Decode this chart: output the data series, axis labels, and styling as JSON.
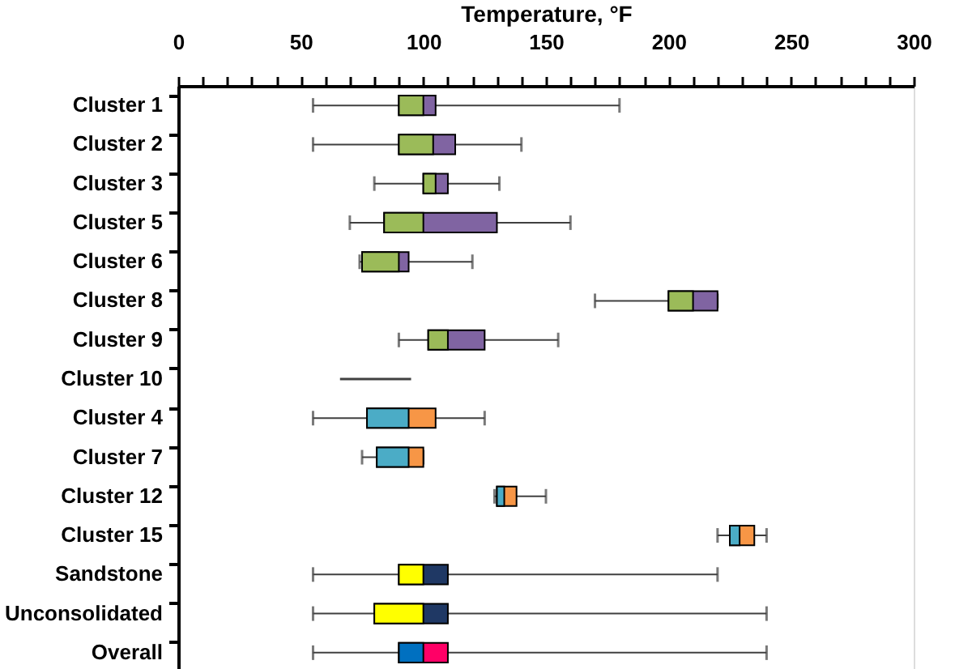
{
  "chart_data": {
    "type": "box",
    "orientation": "horizontal",
    "xlabel": "Temperature, °F",
    "categories": [
      "Cluster 1",
      "Cluster 2",
      "Cluster 3",
      "Cluster 5",
      "Cluster 6",
      "Cluster 8",
      "Cluster 9",
      "Cluster 10",
      "Cluster 4",
      "Cluster 7",
      "Cluster 12",
      "Cluster 15",
      "Sandstone",
      "Unconsolidated",
      "Overall"
    ],
    "xlim": [
      0,
      300
    ],
    "xticks": [
      0,
      {
        "value": 10,
        "label": null
      },
      {
        "value": 20,
        "label": null
      },
      {
        "value": 30,
        "label": null
      },
      {
        "value": 40,
        "label": null
      },
      50,
      {
        "value": 60,
        "label": null
      },
      {
        "value": 70,
        "label": null
      },
      {
        "value": 80,
        "label": null
      },
      {
        "value": 90,
        "label": null
      },
      100,
      {
        "value": 110,
        "label": null
      },
      {
        "value": 120,
        "label": null
      },
      {
        "value": 130,
        "label": null
      },
      {
        "value": 140,
        "label": null
      },
      150,
      {
        "value": 160,
        "label": null
      },
      {
        "value": 170,
        "label": null
      },
      {
        "value": 180,
        "label": null
      },
      {
        "value": 190,
        "label": null
      },
      200,
      {
        "value": 210,
        "label": null
      },
      {
        "value": 220,
        "label": null
      },
      {
        "value": 230,
        "label": null
      },
      {
        "value": 240,
        "label": null
      },
      250,
      {
        "value": 260,
        "label": null
      },
      {
        "value": 270,
        "label": null
      },
      {
        "value": 280,
        "label": null
      },
      {
        "value": 290,
        "label": null
      },
      300
    ],
    "grid": false,
    "series": [
      {
        "color": "#9bbb59",
        "colors": [
          "#8064a2",
          "#8064a2",
          "#8064a2",
          "#8064a2",
          "#8064a2",
          "#8064a2",
          "#8064a2",
          "#8064a2",
          null,
          null,
          null,
          null,
          null,
          null,
          null
        ],
        "boxes": [
          {
            "low": 55,
            "q1": 90,
            "median": 100,
            "q3": 105,
            "high": 180
          },
          {
            "low": 55,
            "q1": 90,
            "median": 104,
            "q3": 113,
            "high": 140
          },
          {
            "low": 80,
            "q1": 100,
            "median": 105,
            "q3": 110,
            "high": 131
          },
          {
            "low": 70,
            "q1": 84,
            "median": 100,
            "q3": 130,
            "high": 160
          },
          {
            "low": 74,
            "q1": 75,
            "median": 90,
            "q3": 94,
            "high": 120
          },
          {
            "low": 170,
            "q1": 200,
            "median": 210,
            "q3": 220,
            "high": 220
          },
          {
            "low": 90,
            "q1": 102,
            "median": 110,
            "q3": 125,
            "high": 155
          },
          null,
          null,
          null,
          null,
          null,
          null,
          null,
          null
        ]
      },
      {
        "type": "bar",
        "color": "#404040",
        "base": [
          null,
          null,
          null,
          null,
          null,
          null,
          null,
          66,
          null,
          null,
          null,
          null,
          null,
          null,
          null
        ],
        "values": [
          null,
          null,
          null,
          null,
          null,
          null,
          null,
          29,
          null,
          null,
          null,
          null,
          null,
          null,
          null
        ]
      },
      {
        "color": "#4bacc6",
        "colors": [
          null,
          null,
          null,
          null,
          null,
          null,
          null,
          null,
          "#f79646",
          "#f79646",
          "#f79646",
          "#f79646",
          null,
          null,
          null
        ],
        "boxes": [
          null,
          null,
          null,
          null,
          null,
          null,
          null,
          null,
          {
            "low": 55,
            "q1": 77,
            "median": 94,
            "q3": 105,
            "high": 125
          },
          {
            "low": 75,
            "q1": 81,
            "median": 94,
            "q3": 100,
            "high": 100
          },
          {
            "low": 129,
            "q1": 130,
            "median": 133,
            "q3": 138,
            "high": 150
          },
          {
            "low": 220,
            "q1": 225,
            "median": 229,
            "q3": 235,
            "high": 240
          },
          null,
          null,
          null
        ]
      },
      {
        "color": "#ffff00",
        "colors": [
          null,
          null,
          null,
          null,
          null,
          null,
          null,
          null,
          null,
          null,
          null,
          null,
          "#1f3864",
          "#1f3864",
          null
        ],
        "boxes": [
          null,
          null,
          null,
          null,
          null,
          null,
          null,
          null,
          null,
          null,
          null,
          null,
          {
            "low": 55,
            "q1": 90,
            "median": 100,
            "q3": 110,
            "high": 220
          },
          {
            "low": 55,
            "q1": 80,
            "median": 100,
            "q3": 110,
            "high": 240
          },
          null
        ]
      },
      {
        "color": "#0070c0",
        "colors": [
          null,
          null,
          null,
          null,
          null,
          null,
          null,
          null,
          null,
          null,
          null,
          null,
          null,
          null,
          "#ff0066"
        ],
        "boxes": [
          null,
          null,
          null,
          null,
          null,
          null,
          null,
          null,
          null,
          null,
          null,
          null,
          null,
          null,
          {
            "low": 55,
            "q1": 90,
            "median": 100,
            "q3": 110,
            "high": 240
          }
        ]
      }
    ]
  }
}
